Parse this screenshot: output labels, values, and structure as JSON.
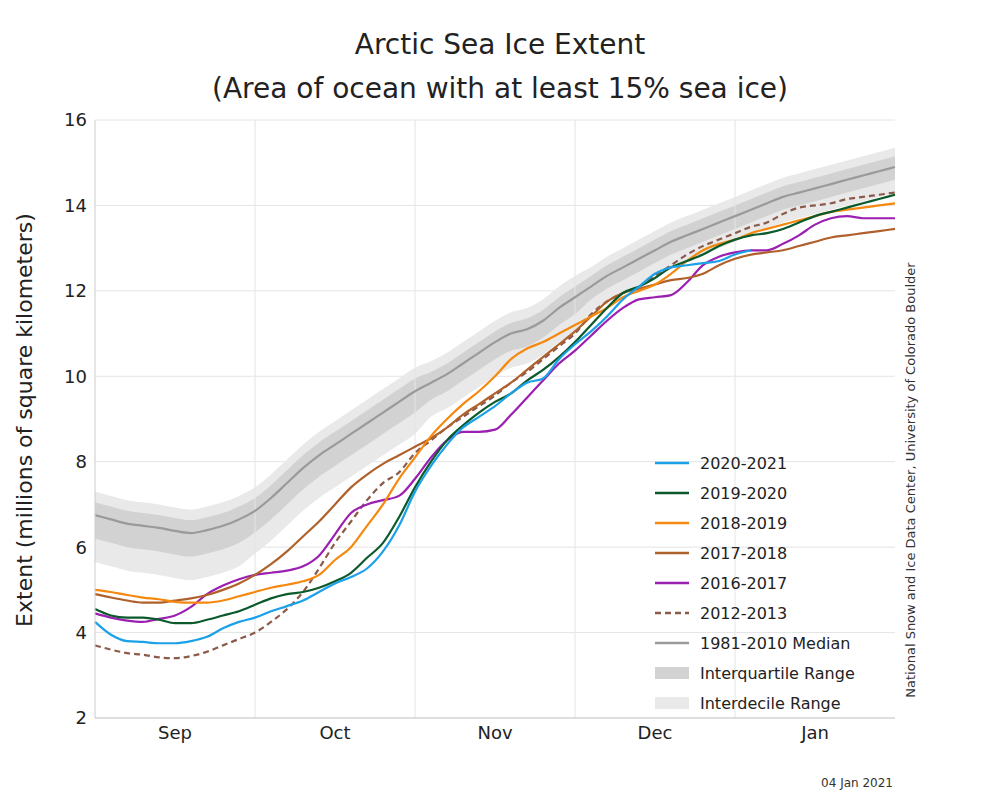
{
  "chart_data": {
    "type": "line",
    "title": "Arctic Sea Ice Extent",
    "subtitle": "(Area of ocean with at least 15% sea ice)",
    "y_label": "Extent (millions of square kilometers)",
    "annotations": [
      "National Snow and Ice Data Center, University of Colorado Boulder",
      "04 Jan 2021"
    ],
    "categories": [
      null,
      null,
      null,
      null,
      null,
      "Sep",
      null,
      null,
      null,
      null,
      null,
      null,
      null,
      null,
      null,
      "Oct",
      null,
      null,
      null,
      null,
      null,
      null,
      null,
      null,
      null,
      "Nov",
      null,
      null,
      null,
      null,
      null,
      null,
      null,
      null,
      null,
      "Dec",
      null,
      null,
      null,
      null,
      null,
      null,
      null,
      null,
      null,
      "Jan",
      null,
      null,
      null,
      null,
      null
    ],
    "ylim": [
      2,
      16
    ],
    "yticks": [
      2,
      4,
      6,
      8,
      10,
      12,
      14,
      16
    ],
    "grid": true,
    "legend": "lower right",
    "series": [
      {
        "name": "2020-2021",
        "type": "line",
        "color": "#1ba1e8",
        "values": [
          4.25,
          3.95,
          3.8,
          3.78,
          3.75,
          3.75,
          3.8,
          3.9,
          4.1,
          4.25,
          4.35,
          4.5,
          4.62,
          4.75,
          4.95,
          5.15,
          5.3,
          5.5,
          5.9,
          6.5,
          7.3,
          7.9,
          8.4,
          8.8,
          9.05,
          9.3,
          9.6,
          9.85,
          9.95,
          10.4,
          10.75,
          11.05,
          11.4,
          11.8,
          12.1,
          12.4,
          12.55,
          12.6,
          12.65,
          12.7,
          12.85,
          12.95,
          null,
          null,
          null,
          null,
          null,
          null,
          null,
          null,
          null
        ]
      },
      {
        "name": "2019-2020",
        "type": "line",
        "color": "#0b5a2c",
        "values": [
          4.55,
          4.4,
          4.35,
          4.35,
          4.3,
          4.22,
          4.22,
          4.3,
          4.4,
          4.5,
          4.65,
          4.8,
          4.9,
          4.95,
          5.05,
          5.2,
          5.4,
          5.75,
          6.1,
          6.7,
          7.4,
          8.0,
          8.5,
          8.85,
          9.15,
          9.4,
          9.6,
          9.9,
          10.15,
          10.45,
          10.8,
          11.2,
          11.6,
          11.95,
          12.1,
          12.3,
          12.55,
          12.7,
          12.85,
          13.05,
          13.2,
          13.3,
          13.35,
          13.45,
          13.6,
          13.75,
          13.85,
          13.95,
          14.05,
          14.15,
          14.25
        ]
      },
      {
        "name": "2018-2019",
        "type": "line",
        "color": "#f5890f",
        "values": [
          5.0,
          4.95,
          4.88,
          4.82,
          4.78,
          4.72,
          4.7,
          4.7,
          4.75,
          4.85,
          4.95,
          5.05,
          5.12,
          5.2,
          5.35,
          5.7,
          6.0,
          6.5,
          7.0,
          7.6,
          8.1,
          8.6,
          9.0,
          9.35,
          9.65,
          10.0,
          10.4,
          10.65,
          10.8,
          11.0,
          11.2,
          11.4,
          11.6,
          11.85,
          12.0,
          12.15,
          12.4,
          12.7,
          12.95,
          13.1,
          13.2,
          13.35,
          13.45,
          13.55,
          13.65,
          13.75,
          13.85,
          13.9,
          13.95,
          14.0,
          14.05
        ]
      },
      {
        "name": "2017-2018",
        "type": "line",
        "color": "#b0612b",
        "values": [
          4.9,
          4.82,
          4.75,
          4.7,
          4.7,
          4.75,
          4.8,
          4.88,
          5.0,
          5.15,
          5.35,
          5.6,
          5.9,
          6.25,
          6.6,
          7.0,
          7.4,
          7.7,
          7.95,
          8.15,
          8.35,
          8.55,
          8.8,
          9.1,
          9.35,
          9.6,
          9.85,
          10.15,
          10.45,
          10.75,
          11.05,
          11.4,
          11.75,
          11.95,
          12.05,
          12.15,
          12.25,
          12.3,
          12.4,
          12.6,
          12.75,
          12.85,
          12.9,
          12.95,
          13.05,
          13.15,
          13.25,
          13.3,
          13.35,
          13.4,
          13.45
        ]
      },
      {
        "name": "2016-2017",
        "type": "line",
        "color": "#9b1fb1",
        "values": [
          4.45,
          4.35,
          4.28,
          4.25,
          4.32,
          4.4,
          4.6,
          4.9,
          5.1,
          5.25,
          5.35,
          5.4,
          5.45,
          5.55,
          5.8,
          6.3,
          6.8,
          7.0,
          7.1,
          7.2,
          7.6,
          8.1,
          8.5,
          8.7,
          8.7,
          8.75,
          9.1,
          9.5,
          9.9,
          10.3,
          10.6,
          10.95,
          11.3,
          11.6,
          11.8,
          11.85,
          11.9,
          12.2,
          12.6,
          12.8,
          12.9,
          12.95,
          12.95,
          13.1,
          13.3,
          13.55,
          13.7,
          13.75,
          13.7,
          13.7,
          13.7
        ]
      },
      {
        "name": "2012-2013",
        "type": "line",
        "color": "#8b5a4a",
        "line_style": "dashed",
        "values": [
          3.7,
          3.6,
          3.52,
          3.48,
          3.42,
          3.4,
          3.45,
          3.55,
          3.7,
          3.85,
          4.0,
          4.25,
          4.55,
          4.95,
          5.5,
          6.1,
          6.6,
          7.1,
          7.5,
          7.75,
          8.2,
          8.5,
          8.8,
          9.05,
          9.3,
          9.55,
          9.85,
          10.1,
          10.4,
          10.7,
          11.0,
          11.45,
          11.75,
          11.95,
          12.1,
          12.35,
          12.6,
          12.85,
          13.05,
          13.2,
          13.35,
          13.5,
          13.6,
          13.8,
          13.95,
          14.0,
          14.05,
          14.15,
          14.2,
          14.25,
          14.3
        ]
      },
      {
        "name": "1981-2010 Median",
        "type": "line",
        "color": "#9a9a9a",
        "values": [
          6.75,
          6.65,
          6.55,
          6.5,
          6.45,
          6.38,
          6.33,
          6.4,
          6.5,
          6.65,
          6.85,
          7.15,
          7.5,
          7.85,
          8.15,
          8.4,
          8.65,
          8.9,
          9.15,
          9.4,
          9.65,
          9.85,
          10.05,
          10.3,
          10.55,
          10.8,
          11.0,
          11.1,
          11.3,
          11.6,
          11.85,
          12.1,
          12.35,
          12.55,
          12.75,
          12.95,
          13.15,
          13.3,
          13.45,
          13.6,
          13.75,
          13.9,
          14.05,
          14.2,
          14.3,
          14.4,
          14.5,
          14.6,
          14.7,
          14.8,
          14.9
        ]
      },
      {
        "name": "Interquartile Range",
        "type": "area",
        "color": "#d2d2d2",
        "values": [
          [
            6.2,
            7.05
          ],
          [
            6.1,
            6.95
          ],
          [
            6.0,
            6.85
          ],
          [
            5.95,
            6.8
          ],
          [
            5.9,
            6.75
          ],
          [
            5.83,
            6.68
          ],
          [
            5.78,
            6.63
          ],
          [
            5.85,
            6.7
          ],
          [
            5.95,
            6.8
          ],
          [
            6.1,
            6.95
          ],
          [
            6.35,
            7.15
          ],
          [
            6.65,
            7.45
          ],
          [
            7.0,
            7.8
          ],
          [
            7.35,
            8.15
          ],
          [
            7.65,
            8.45
          ],
          [
            7.9,
            8.7
          ],
          [
            8.15,
            8.95
          ],
          [
            8.4,
            9.2
          ],
          [
            8.65,
            9.45
          ],
          [
            8.9,
            9.7
          ],
          [
            9.15,
            9.95
          ],
          [
            9.45,
            10.1
          ],
          [
            9.65,
            10.3
          ],
          [
            9.9,
            10.55
          ],
          [
            10.15,
            10.8
          ],
          [
            10.4,
            11.05
          ],
          [
            10.6,
            11.25
          ],
          [
            10.7,
            11.35
          ],
          [
            10.9,
            11.55
          ],
          [
            11.2,
            11.85
          ],
          [
            11.45,
            12.1
          ],
          [
            11.8,
            12.35
          ],
          [
            12.05,
            12.6
          ],
          [
            12.25,
            12.8
          ],
          [
            12.45,
            13.0
          ],
          [
            12.65,
            13.2
          ],
          [
            12.85,
            13.4
          ],
          [
            13.0,
            13.55
          ],
          [
            13.15,
            13.7
          ],
          [
            13.3,
            13.85
          ],
          [
            13.45,
            14.0
          ],
          [
            13.6,
            14.15
          ],
          [
            13.75,
            14.3
          ],
          [
            13.9,
            14.45
          ],
          [
            14.0,
            14.55
          ],
          [
            14.1,
            14.65
          ],
          [
            14.2,
            14.75
          ],
          [
            14.3,
            14.85
          ],
          [
            14.4,
            14.95
          ],
          [
            14.5,
            15.05
          ],
          [
            14.6,
            15.15
          ]
        ]
      },
      {
        "name": "Interdecile Range",
        "type": "area",
        "color": "#e9e9e9",
        "values": [
          [
            5.65,
            7.3
          ],
          [
            5.55,
            7.2
          ],
          [
            5.45,
            7.1
          ],
          [
            5.4,
            7.05
          ],
          [
            5.35,
            7.0
          ],
          [
            5.28,
            6.93
          ],
          [
            5.23,
            6.88
          ],
          [
            5.3,
            6.95
          ],
          [
            5.4,
            7.05
          ],
          [
            5.55,
            7.2
          ],
          [
            5.85,
            7.4
          ],
          [
            6.15,
            7.7
          ],
          [
            6.5,
            8.05
          ],
          [
            6.85,
            8.4
          ],
          [
            7.15,
            8.7
          ],
          [
            7.4,
            8.95
          ],
          [
            7.65,
            9.2
          ],
          [
            7.9,
            9.45
          ],
          [
            8.15,
            9.7
          ],
          [
            8.4,
            9.95
          ],
          [
            8.65,
            10.2
          ],
          [
            9.05,
            10.35
          ],
          [
            9.25,
            10.55
          ],
          [
            9.5,
            10.8
          ],
          [
            9.75,
            11.05
          ],
          [
            10.0,
            11.3
          ],
          [
            10.2,
            11.5
          ],
          [
            10.3,
            11.6
          ],
          [
            10.5,
            11.8
          ],
          [
            10.8,
            12.1
          ],
          [
            11.05,
            12.35
          ],
          [
            11.5,
            12.55
          ],
          [
            11.75,
            12.8
          ],
          [
            11.95,
            13.0
          ],
          [
            12.15,
            13.2
          ],
          [
            12.35,
            13.4
          ],
          [
            12.55,
            13.6
          ],
          [
            12.7,
            13.75
          ],
          [
            12.85,
            13.9
          ],
          [
            13.0,
            14.05
          ],
          [
            13.15,
            14.2
          ],
          [
            13.3,
            14.35
          ],
          [
            13.45,
            14.5
          ],
          [
            13.6,
            14.65
          ],
          [
            13.7,
            14.75
          ],
          [
            13.8,
            14.85
          ],
          [
            13.9,
            14.95
          ],
          [
            14.0,
            15.05
          ],
          [
            14.1,
            15.15
          ],
          [
            14.2,
            15.25
          ],
          [
            14.3,
            15.35
          ]
        ]
      }
    ]
  }
}
